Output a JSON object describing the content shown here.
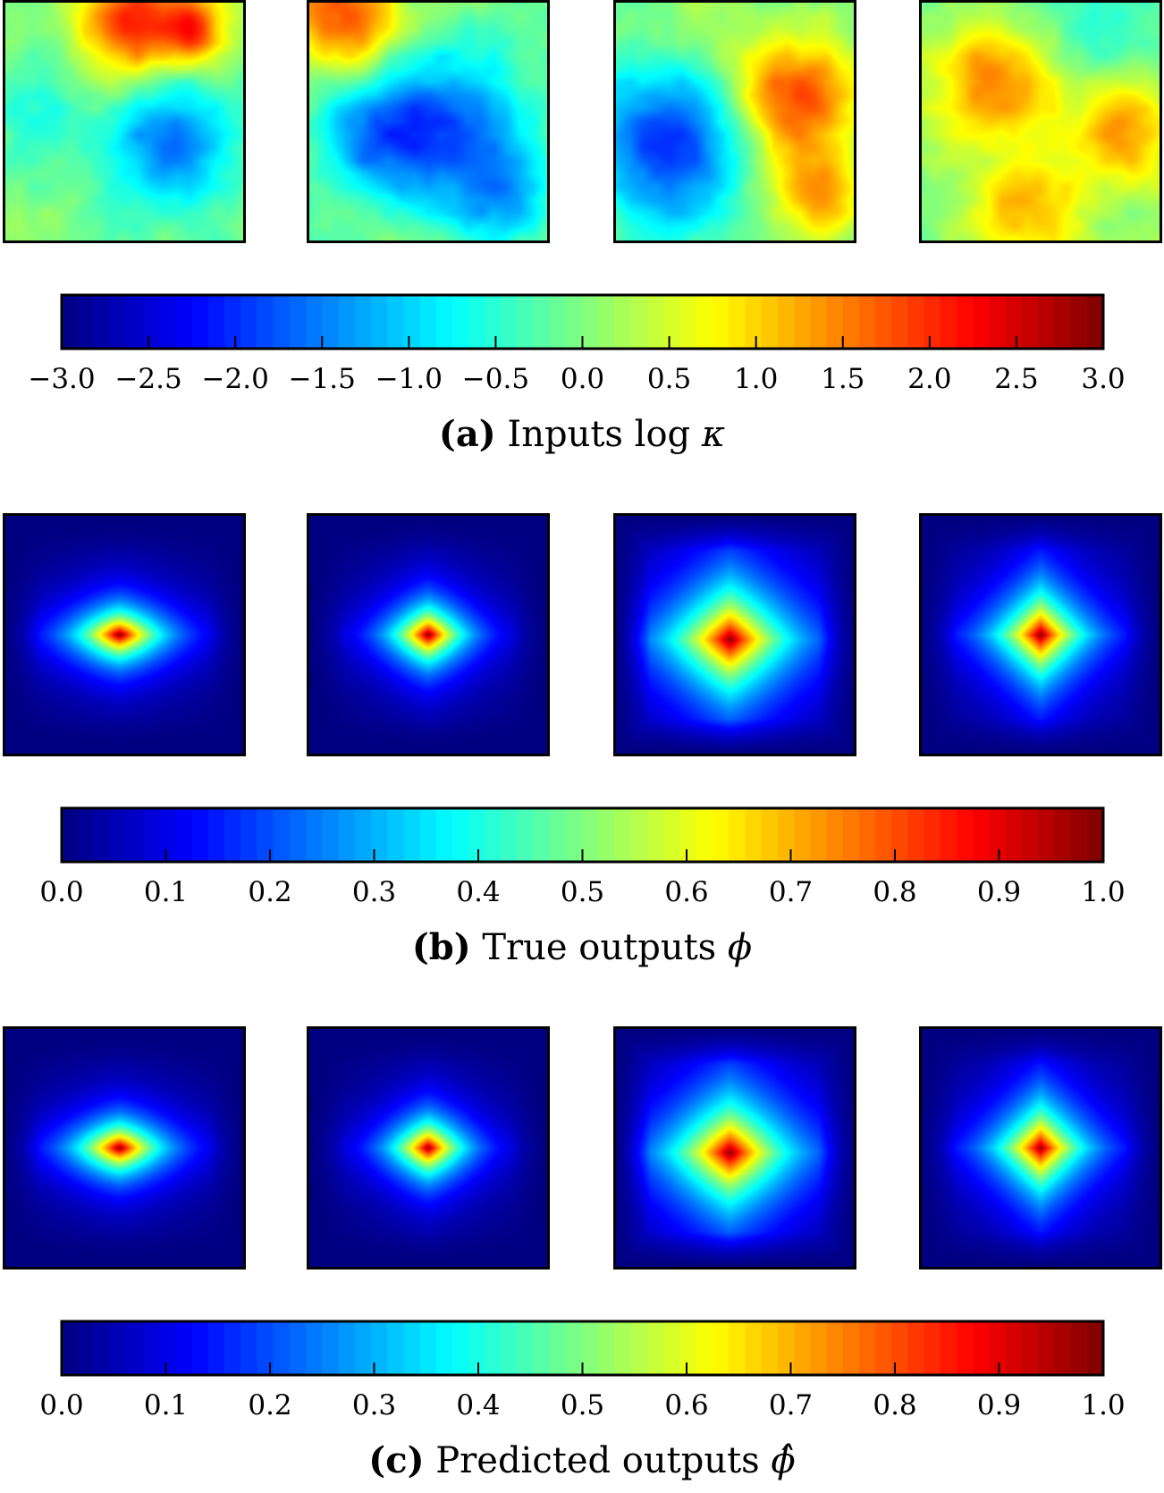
{
  "chart_data": [
    {
      "type": "heatmap",
      "panels": 4,
      "field": "log kappa (random permeability field)",
      "colormap": "jet",
      "colorbar": {
        "ticks": [
          "−3.0",
          "−2.5",
          "−2.0",
          "−1.5",
          "−1.0",
          "−0.5",
          "0.0",
          "0.5",
          "1.0",
          "1.5",
          "2.0",
          "2.5",
          "3.0"
        ],
        "range": [
          -3.0,
          3.0
        ]
      },
      "caption": {
        "letter": "(a)",
        "text": "Inputs log",
        "symbol": "κ"
      }
    },
    {
      "type": "heatmap",
      "panels": 4,
      "field": "phi",
      "colormap": "jet",
      "colorbar": {
        "ticks": [
          "0.0",
          "0.1",
          "0.2",
          "0.3",
          "0.4",
          "0.5",
          "0.6",
          "0.7",
          "0.8",
          "0.9",
          "1.0"
        ],
        "range": [
          0.0,
          1.0
        ]
      },
      "caption": {
        "letter": "(b)",
        "text": "True outputs",
        "symbol": "ϕ"
      }
    },
    {
      "type": "heatmap",
      "panels": 4,
      "field": "phi-hat",
      "colormap": "jet",
      "colorbar": {
        "ticks": [
          "0.0",
          "0.1",
          "0.2",
          "0.3",
          "0.4",
          "0.5",
          "0.6",
          "0.7",
          "0.8",
          "0.9",
          "1.0"
        ],
        "range": [
          0.0,
          1.0
        ]
      },
      "caption": {
        "letter": "(c)",
        "text": "Predicted outputs",
        "symbol": "ϕ̂"
      }
    }
  ]
}
